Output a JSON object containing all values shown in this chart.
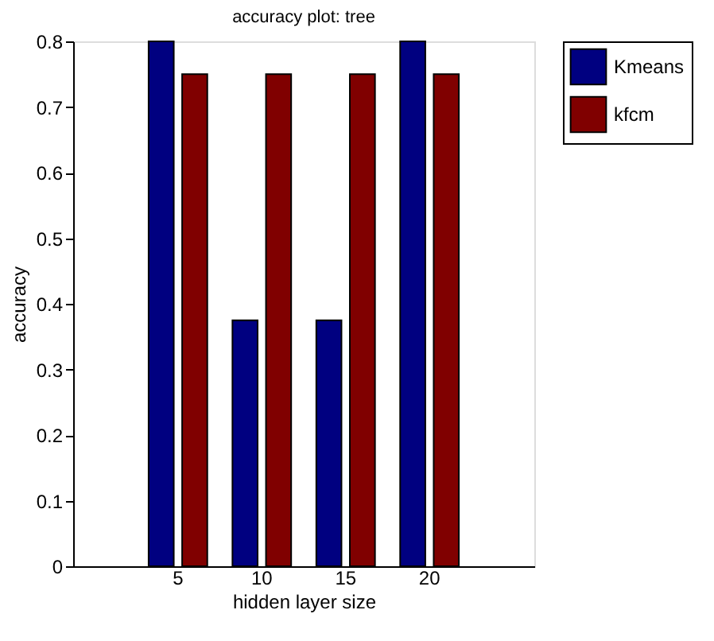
{
  "chart_data": {
    "type": "bar",
    "title": "accuracy plot: tree",
    "xlabel": "hidden layer size",
    "ylabel": "accuracy",
    "categories": [
      "5",
      "10",
      "15",
      "20"
    ],
    "series": [
      {
        "name": "Kmeans",
        "color": "#000080",
        "values": [
          0.8,
          0.375,
          0.375,
          0.8
        ]
      },
      {
        "name": "kfcm",
        "color": "#800000",
        "values": [
          0.75,
          0.75,
          0.75,
          0.75
        ]
      }
    ],
    "ylim": [
      0,
      0.8
    ],
    "yticks": [
      0,
      0.1,
      0.2,
      0.3,
      0.4,
      0.5,
      0.6,
      0.7,
      0.8
    ],
    "grid": false,
    "legend": "top right"
  }
}
